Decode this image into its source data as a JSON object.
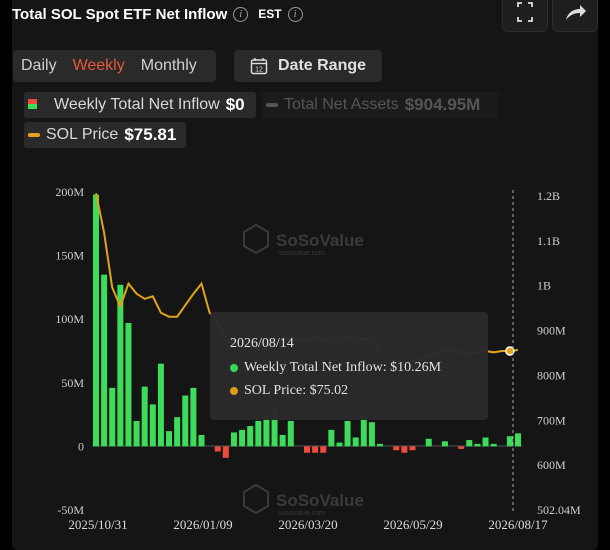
{
  "header": {
    "title": "Total SOL Spot ETF Net Inflow",
    "timezone": "EST"
  },
  "period_tabs": [
    {
      "label": "Daily",
      "active": false
    },
    {
      "label": "Weekly",
      "active": true
    },
    {
      "label": "Monthly",
      "active": false
    }
  ],
  "date_range": {
    "label": "Date Range",
    "calendar_day": "12"
  },
  "legend": {
    "inflow": {
      "label": "Weekly Total Net Inflow",
      "value": "$0"
    },
    "assets": {
      "label": "Total Net Assets",
      "value": "$904.95M"
    },
    "price": {
      "label": "SOL Price",
      "value": "$75.81"
    }
  },
  "watermark": {
    "brand": "SoSoValue",
    "url": "sosovalue.com"
  },
  "tooltip": {
    "date": "2026/08/14",
    "inflow": "Weekly Total Net Inflow: $10.26M",
    "price": "SOL Price: $75.02"
  },
  "colors": {
    "positive": "#3ddc5a",
    "negative": "#ef4a3a",
    "price": "#e3a21a",
    "accent": "#e8563a"
  },
  "chart_data": {
    "type": "bar",
    "left_axis": {
      "ticks": [
        "200M",
        "150M",
        "100M",
        "50M",
        "0",
        "-50M"
      ],
      "ylim": [
        -50,
        200
      ],
      "unit": "M"
    },
    "right_axis": {
      "ticks": [
        "1.2B",
        "1.1B",
        "1B",
        "900M",
        "800M",
        "700M",
        "600M",
        "502.04M"
      ]
    },
    "x_ticks": [
      "2025/10/31",
      "2026/01/09",
      "2026/03/20",
      "2026/05/29",
      "2026/08/17"
    ],
    "series": [
      {
        "name": "Weekly Total Net Inflow",
        "type": "bar",
        "values": [
          198,
          135,
          46,
          127,
          97,
          20,
          47,
          33,
          65,
          12,
          23,
          40,
          46,
          9,
          0,
          -4,
          -9,
          11,
          13,
          16,
          20,
          24,
          31,
          9,
          20,
          0,
          -5,
          -5,
          -5,
          13,
          3,
          20,
          7,
          24,
          19,
          2,
          0,
          -3,
          -5,
          -3,
          0,
          6,
          0,
          4,
          0,
          -2,
          5,
          2,
          7,
          2,
          0,
          8,
          10.26
        ]
      },
      {
        "name": "SOL Price",
        "type": "line",
        "values": [
          199,
          168,
          125,
          110,
          128,
          120,
          116,
          118,
          105,
          102,
          102,
          111,
          120,
          128,
          105,
          98,
          84,
          80,
          78,
          80,
          76,
          76,
          79,
          84,
          86,
          84,
          83,
          87,
          83,
          83,
          82,
          86,
          84,
          85,
          82,
          75,
          70,
          67,
          66,
          67,
          68,
          72,
          74,
          75,
          75,
          74,
          73,
          74,
          75,
          74,
          75,
          75.02,
          75.81
        ]
      }
    ],
    "price_series_unit": "USD",
    "highlighted_week": "2026/08/14",
    "grid": false
  }
}
